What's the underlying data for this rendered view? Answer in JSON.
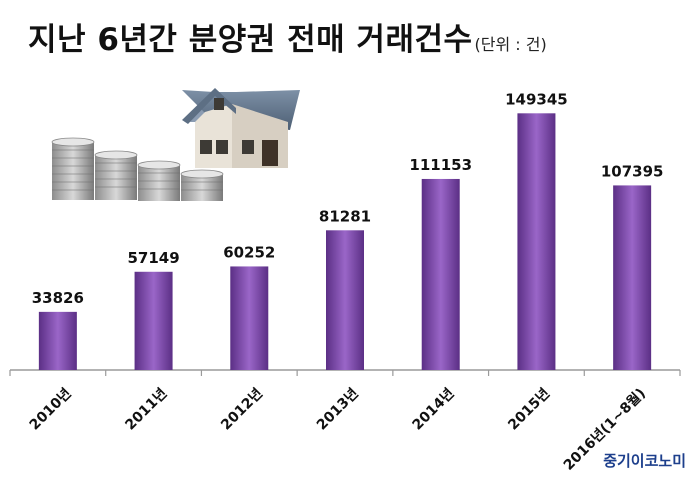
{
  "title": "지난 6년간 분양권 전매 거래건수",
  "unit_note": "(단위  : 건)",
  "source": "중기이코노미",
  "colors": {
    "bar_top": "#9a66c8",
    "bar_bottom": "#5b2f85",
    "axis": "#9a9a9a",
    "source_text": "#1d3f8c"
  },
  "illustration": {
    "name": "house-on-coin-stacks"
  },
  "chart_data": {
    "type": "bar",
    "title": "지난 6년간 분양권 전매 거래건수",
    "unit": "(단위  : 건)",
    "categories": [
      "2010년",
      "2011년",
      "2012년",
      "2013년",
      "2014년",
      "2015년",
      "2016년(1~8월)"
    ],
    "values": [
      33826,
      57149,
      60252,
      81281,
      111153,
      149345,
      107395
    ],
    "ylim": [
      0,
      160000
    ],
    "grid": false,
    "legend": "none",
    "xlabel": "",
    "ylabel": ""
  }
}
